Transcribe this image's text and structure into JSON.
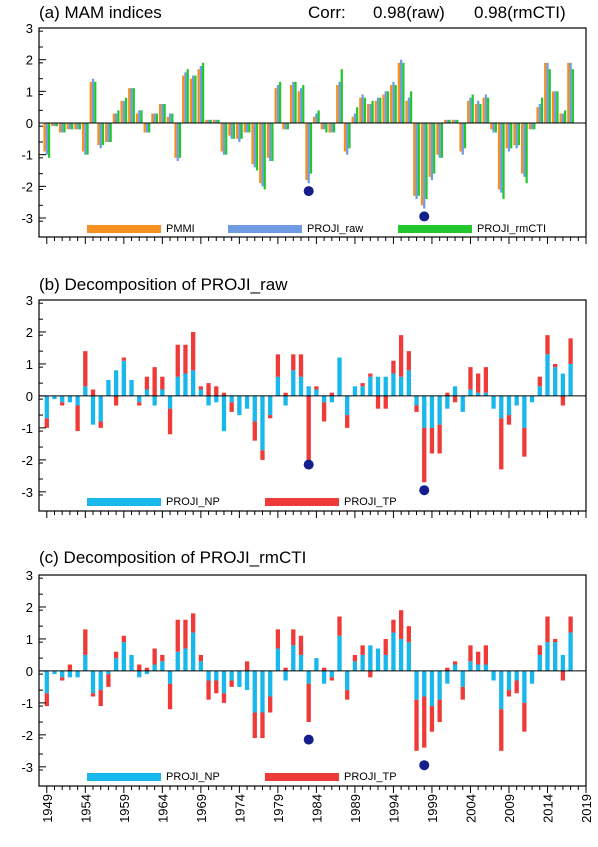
{
  "colors": {
    "pmmi": "#F5901E",
    "proji_raw": "#6E9BE2",
    "proji_rmcti": "#22C730",
    "np": "#18B8EC",
    "tp": "#EE3B38",
    "marker": "#141E8C"
  },
  "x_ticks": [
    "1949",
    "1954",
    "1959",
    "1964",
    "1969",
    "1974",
    "1979",
    "1984",
    "1989",
    "1994",
    "1999",
    "2004",
    "2009",
    "2014",
    "2019"
  ],
  "chart_data": [
    {
      "type": "bar",
      "title": "(a) MAM indices",
      "corr_label": "Corr:",
      "corr_raw": "0.98(raw)",
      "corr_rmcti": "0.98(rmCTI)",
      "xlabel": "",
      "ylabel": "",
      "ylim": [
        -3.6,
        3
      ],
      "yticks": [
        3,
        2,
        1,
        0,
        -1,
        -2,
        -3
      ],
      "x_range": [
        1949,
        2019
      ],
      "x": [
        1949,
        1950,
        1951,
        1952,
        1953,
        1954,
        1955,
        1956,
        1957,
        1958,
        1959,
        1960,
        1961,
        1962,
        1963,
        1964,
        1965,
        1966,
        1967,
        1968,
        1969,
        1970,
        1971,
        1972,
        1973,
        1974,
        1975,
        1976,
        1977,
        1978,
        1979,
        1980,
        1981,
        1982,
        1983,
        1984,
        1985,
        1986,
        1987,
        1988,
        1989,
        1990,
        1991,
        1992,
        1993,
        1994,
        1995,
        1996,
        1997,
        1998,
        1999,
        2000,
        2001,
        2002,
        2003,
        2004,
        2005,
        2006,
        2007,
        2008,
        2009,
        2010,
        2011,
        2012,
        2013,
        2014,
        2015,
        2016,
        2017,
        2018
      ],
      "series": [
        {
          "name": "PMMI",
          "values": [
            -0.9,
            -0.1,
            -0.3,
            -0.2,
            -0.2,
            -0.9,
            1.3,
            -0.7,
            -0.6,
            0.3,
            0.7,
            1.1,
            0.3,
            -0.3,
            0.3,
            0.6,
            0.2,
            -1.1,
            1.5,
            1.4,
            1.7,
            0.1,
            0.1,
            -0.9,
            -0.4,
            -0.5,
            -0.3,
            -1.3,
            -1.9,
            -1.1,
            1.1,
            -0.2,
            1.2,
            1.0,
            -1.8,
            0.2,
            -0.2,
            -0.3,
            1.2,
            -0.9,
            0.2,
            0.8,
            0.6,
            0.7,
            0.9,
            1.2,
            1.9,
            0.7,
            -2.3,
            -2.6,
            -1.7,
            -1.0,
            0.1,
            0.1,
            -0.9,
            0.7,
            0.6,
            0.8,
            -0.2,
            -2.1,
            -0.8,
            -0.7,
            -1.6,
            -0.2,
            0.5,
            1.9,
            1.0,
            0.3,
            1.9,
            0.0
          ]
        },
        {
          "name": "PROJI_raw",
          "values": [
            -1.0,
            -0.1,
            -0.3,
            -0.2,
            -0.2,
            -1.0,
            1.4,
            -0.8,
            -0.6,
            0.3,
            0.7,
            1.1,
            0.4,
            -0.3,
            0.3,
            0.6,
            0.3,
            -1.2,
            1.6,
            1.5,
            1.8,
            0.1,
            0.1,
            -1.0,
            -0.5,
            -0.6,
            -0.3,
            -1.4,
            -2.0,
            -1.2,
            1.2,
            -0.2,
            1.3,
            1.1,
            -1.9,
            0.3,
            -0.2,
            -0.3,
            1.3,
            -1.0,
            0.3,
            0.9,
            0.6,
            0.8,
            1.0,
            1.3,
            2.0,
            0.8,
            -2.4,
            -2.7,
            -1.8,
            -1.1,
            0.1,
            0.1,
            -1.0,
            0.8,
            0.7,
            0.9,
            -0.3,
            -2.2,
            -0.9,
            -0.8,
            -1.7,
            -0.2,
            0.6,
            1.9,
            1.0,
            0.3,
            1.9,
            0.0
          ]
        },
        {
          "name": "PROJI_rmCTI",
          "values": [
            -1.1,
            -0.1,
            -0.3,
            -0.2,
            -0.2,
            -1.0,
            1.3,
            -0.7,
            -0.6,
            0.4,
            0.8,
            1.1,
            0.4,
            -0.3,
            0.3,
            0.6,
            0.3,
            -1.1,
            1.7,
            1.5,
            1.9,
            0.1,
            0.1,
            -1.0,
            -0.5,
            -0.5,
            -0.3,
            -1.5,
            -2.1,
            -1.2,
            1.3,
            -0.2,
            1.3,
            1.2,
            -1.6,
            0.4,
            -0.3,
            -0.3,
            1.7,
            -0.8,
            0.5,
            0.8,
            0.7,
            0.8,
            1.0,
            1.2,
            1.9,
            1.0,
            -2.3,
            -2.4,
            -1.6,
            -1.1,
            0.1,
            0.1,
            -0.8,
            0.9,
            0.6,
            0.8,
            -0.3,
            -2.4,
            -0.8,
            -0.7,
            -1.9,
            -0.2,
            0.8,
            1.7,
            1.0,
            0.4,
            1.7,
            0.0
          ]
        }
      ],
      "markers": [
        {
          "x": 1983,
          "y": -2.15
        },
        {
          "x": 1998,
          "y": -2.95
        }
      ],
      "legend": [
        {
          "label": "PMMI",
          "series": "PMMI"
        },
        {
          "label": "PROJI_raw",
          "series": "PROJI_raw"
        },
        {
          "label": "PROJI_rmCTI",
          "series": "PROJI_rmCTI"
        }
      ],
      "legend_position": "bottom-center"
    },
    {
      "type": "bar",
      "stacked": true,
      "title": "(b) Decomposition of PROJI_raw",
      "xlabel": "",
      "ylabel": "",
      "ylim": [
        -3.6,
        3
      ],
      "yticks": [
        3,
        2,
        1,
        0,
        -1,
        -2,
        -3
      ],
      "x_range": [
        1949,
        2019
      ],
      "x": [
        1949,
        1950,
        1951,
        1952,
        1953,
        1954,
        1955,
        1956,
        1957,
        1958,
        1959,
        1960,
        1961,
        1962,
        1963,
        1964,
        1965,
        1966,
        1967,
        1968,
        1969,
        1970,
        1971,
        1972,
        1973,
        1974,
        1975,
        1976,
        1977,
        1978,
        1979,
        1980,
        1981,
        1982,
        1983,
        1984,
        1985,
        1986,
        1987,
        1988,
        1989,
        1990,
        1991,
        1992,
        1993,
        1994,
        1995,
        1996,
        1997,
        1998,
        1999,
        2000,
        2001,
        2002,
        2003,
        2004,
        2005,
        2006,
        2007,
        2008,
        2009,
        2010,
        2011,
        2012,
        2013,
        2014,
        2015,
        2016,
        2017,
        2018
      ],
      "series": [
        {
          "name": "PROJI_NP",
          "values": [
            -0.7,
            -0.1,
            -0.2,
            -0.2,
            -0.3,
            0.3,
            -0.9,
            -0.8,
            0.5,
            0.8,
            1.1,
            0.5,
            -0.2,
            0.2,
            -0.3,
            0.2,
            -0.4,
            0.6,
            0.7,
            0.8,
            0.2,
            -0.3,
            -0.2,
            -1.1,
            -0.2,
            -0.6,
            -0.4,
            -0.8,
            -1.7,
            -0.6,
            0.6,
            -0.3,
            0.8,
            0.6,
            0.3,
            0.2,
            -0.2,
            -0.2,
            1.2,
            -0.6,
            0.3,
            0.3,
            0.6,
            0.6,
            0.6,
            0.7,
            0.6,
            0.8,
            -0.3,
            -1.0,
            -1.0,
            -0.9,
            -0.4,
            0.3,
            -0.5,
            0.2,
            0.1,
            0.1,
            -0.4,
            -0.7,
            -0.6,
            -0.3,
            -1.0,
            -0.2,
            0.3,
            1.3,
            0.9,
            0.7,
            1.0,
            0.0
          ]
        },
        {
          "name": "PROJI_TP",
          "values": [
            -0.3,
            0.0,
            -0.1,
            0.0,
            -0.8,
            1.1,
            0.2,
            -0.2,
            0.0,
            -0.3,
            0.1,
            0.0,
            -0.1,
            0.4,
            0.9,
            0.4,
            -0.8,
            1.0,
            0.9,
            1.2,
            0.1,
            0.4,
            0.3,
            0.1,
            -0.3,
            0.0,
            0.0,
            -0.6,
            -0.3,
            -0.1,
            0.7,
            0.1,
            0.5,
            0.7,
            -2.2,
            0.1,
            -0.6,
            0.1,
            0.0,
            -0.4,
            0.0,
            0.1,
            0.1,
            -0.4,
            -0.4,
            0.4,
            1.3,
            0.6,
            -0.2,
            -1.7,
            -0.8,
            -0.9,
            0.1,
            -0.2,
            0.0,
            0.7,
            0.6,
            0.8,
            0.0,
            -1.6,
            -0.3,
            0.0,
            -0.9,
            0.0,
            0.3,
            0.6,
            0.1,
            -0.3,
            0.8,
            0.0
          ]
        }
      ],
      "markers": [
        {
          "x": 1983,
          "y": -2.15
        },
        {
          "x": 1998,
          "y": -2.95
        }
      ],
      "legend": [
        {
          "label": "PROJI_NP",
          "series": "PROJI_NP"
        },
        {
          "label": "PROJI_TP",
          "series": "PROJI_TP"
        }
      ],
      "legend_position": "bottom-left"
    },
    {
      "type": "bar",
      "stacked": true,
      "title": "(c) Decomposition of PROJI_rmCTI",
      "xlabel": "",
      "ylabel": "",
      "ylim": [
        -3.6,
        3
      ],
      "yticks": [
        3,
        2,
        1,
        0,
        -1,
        -2,
        -3
      ],
      "x_range": [
        1949,
        2019
      ],
      "x": [
        1949,
        1950,
        1951,
        1952,
        1953,
        1954,
        1955,
        1956,
        1957,
        1958,
        1959,
        1960,
        1961,
        1962,
        1963,
        1964,
        1965,
        1966,
        1967,
        1968,
        1969,
        1970,
        1971,
        1972,
        1973,
        1974,
        1975,
        1976,
        1977,
        1978,
        1979,
        1980,
        1981,
        1982,
        1983,
        1984,
        1985,
        1986,
        1987,
        1988,
        1989,
        1990,
        1991,
        1992,
        1993,
        1994,
        1995,
        1996,
        1997,
        1998,
        1999,
        2000,
        2001,
        2002,
        2003,
        2004,
        2005,
        2006,
        2007,
        2008,
        2009,
        2010,
        2011,
        2012,
        2013,
        2014,
        2015,
        2016,
        2017,
        2018
      ],
      "series": [
        {
          "name": "PROJI_NP",
          "values": [
            -0.7,
            -0.1,
            -0.2,
            -0.2,
            -0.2,
            0.5,
            -0.7,
            -0.6,
            -0.1,
            0.4,
            0.9,
            0.5,
            -0.2,
            -0.1,
            0.2,
            0.3,
            -0.4,
            0.6,
            0.7,
            1.2,
            0.3,
            -0.3,
            -0.3,
            -0.7,
            -0.3,
            -0.5,
            -0.6,
            -1.3,
            -1.3,
            -0.8,
            0.7,
            -0.3,
            0.8,
            0.5,
            -0.4,
            0.4,
            -0.4,
            -0.2,
            1.1,
            -0.6,
            0.3,
            0.5,
            0.8,
            0.7,
            0.5,
            1.2,
            1.0,
            0.9,
            -0.9,
            -0.8,
            -1.1,
            -0.9,
            -0.4,
            0.2,
            -0.5,
            0.3,
            0.2,
            0.2,
            -0.3,
            -1.2,
            -0.6,
            -0.3,
            -1.0,
            -0.4,
            0.5,
            0.9,
            0.9,
            0.5,
            1.2,
            0.0
          ]
        },
        {
          "name": "PROJI_TP",
          "values": [
            -0.4,
            0.0,
            -0.1,
            0.2,
            0.0,
            0.8,
            -0.1,
            -0.5,
            -0.4,
            0.2,
            0.2,
            0.0,
            0.2,
            0.1,
            0.5,
            0.2,
            -0.8,
            1.0,
            0.9,
            0.6,
            0.2,
            -0.6,
            -0.4,
            -0.3,
            -0.2,
            0.0,
            0.3,
            -0.8,
            -0.8,
            -0.5,
            0.6,
            0.1,
            0.5,
            0.6,
            -1.2,
            0.0,
            0.1,
            -0.1,
            0.6,
            -0.3,
            0.2,
            0.3,
            -0.2,
            0.0,
            0.5,
            0.4,
            0.9,
            0.5,
            -1.6,
            -1.6,
            -0.8,
            -0.7,
            0.1,
            0.1,
            -0.4,
            0.5,
            0.4,
            0.6,
            0.0,
            -1.3,
            -0.2,
            -0.4,
            -0.9,
            0.0,
            0.3,
            0.8,
            0.1,
            -0.3,
            0.5,
            0.0
          ]
        }
      ],
      "markers": [
        {
          "x": 1983,
          "y": -2.15
        },
        {
          "x": 1998,
          "y": -2.95
        }
      ],
      "legend": [
        {
          "label": "PROJI_NP",
          "series": "PROJI_NP"
        },
        {
          "label": "PROJI_TP",
          "series": "PROJI_TP"
        }
      ],
      "legend_position": "bottom-left"
    }
  ]
}
